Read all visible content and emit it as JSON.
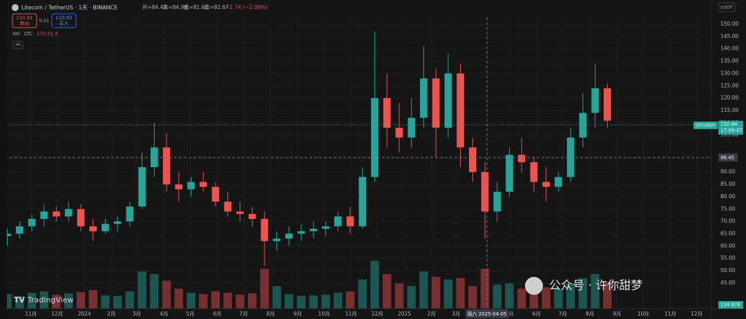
{
  "ui": {
    "symbol": "Litecoin / TetherUS · 1天 · BINANCE",
    "ohlc": [
      "开=84.41",
      "高=84.98",
      "低=81.62",
      "收=82.67",
      "−1.74 (−2.06%)"
    ],
    "sell_price": "110.81",
    "sell_label": "卖出",
    "spread": "0.01",
    "buy_price": "110.82",
    "buy_label": "买入",
    "volume_legend": "Vol · LTC",
    "volume_value": "172.01 K",
    "currency": "USDT",
    "last_symbol": "LTCUSDT",
    "last_price": "110.84",
    "countdown": "17:59:37",
    "cross_price": "98.45",
    "cross_date": "周六 2025-04-05",
    "cross_volume": "124.97K",
    "logo": "TradingView",
    "watermark": "公众号 · 许你甜梦"
  },
  "chart_data": {
    "type": "candlestick",
    "open": [
      64,
      65,
      68,
      71,
      74,
      72,
      75,
      68,
      66,
      69,
      70,
      76,
      92,
      100,
      85,
      83,
      86,
      84,
      78,
      74,
      73,
      71,
      62,
      63,
      65,
      66,
      67,
      68,
      72,
      68,
      88,
      120,
      108,
      104,
      112,
      128,
      108,
      130,
      100,
      90,
      74,
      82,
      97,
      94,
      86,
      84,
      88,
      104,
      114,
      124
    ],
    "high": [
      67,
      70,
      73,
      77,
      76,
      78,
      77,
      71,
      71,
      72,
      78,
      98,
      110,
      106,
      90,
      88,
      90,
      86,
      82,
      78,
      76,
      74,
      66,
      68,
      69,
      70,
      70,
      74,
      76,
      92,
      147,
      130,
      118,
      120,
      141,
      132,
      138,
      134,
      104,
      94,
      86,
      100,
      104,
      96,
      92,
      90,
      108,
      122,
      134,
      126
    ],
    "low": [
      60,
      63,
      66,
      68,
      70,
      70,
      66,
      62,
      65,
      66,
      68,
      75,
      88,
      82,
      78,
      80,
      82,
      76,
      72,
      70,
      68,
      52,
      58,
      60,
      62,
      63,
      64,
      66,
      65,
      67,
      86,
      100,
      98,
      100,
      108,
      96,
      104,
      92,
      86,
      63,
      70,
      80,
      90,
      82,
      78,
      82,
      86,
      100,
      108,
      108
    ],
    "close": [
      65,
      68,
      71,
      74,
      72,
      75,
      68,
      66,
      69,
      70,
      76,
      92,
      100,
      85,
      83,
      86,
      84,
      78,
      74,
      73,
      71,
      62,
      63,
      65,
      66,
      67,
      68,
      72,
      68,
      88,
      120,
      108,
      104,
      112,
      128,
      108,
      130,
      100,
      90,
      74,
      82,
      97,
      94,
      86,
      84,
      88,
      104,
      114,
      124,
      110.84
    ],
    "volume": [
      110,
      95,
      120,
      130,
      105,
      115,
      125,
      140,
      100,
      95,
      130,
      280,
      260,
      210,
      150,
      120,
      110,
      130,
      120,
      105,
      115,
      300,
      170,
      110,
      95,
      100,
      105,
      120,
      130,
      220,
      360,
      260,
      190,
      170,
      280,
      240,
      220,
      230,
      170,
      300,
      180,
      190,
      150,
      140,
      160,
      150,
      190,
      230,
      260,
      200
    ],
    "up_color": "#26a69a",
    "down_color": "#ef5350",
    "xlim": [
      -0.6,
      57.5
    ],
    "xticks": [
      {
        "value": 1.93,
        "label": "11月"
      },
      {
        "value": 4.07,
        "label": "12月"
      },
      {
        "value": 6.29,
        "label": "2024"
      },
      {
        "value": 8.5,
        "label": "2月"
      },
      {
        "value": 10.57,
        "label": "3月"
      },
      {
        "value": 12.79,
        "label": "4月"
      },
      {
        "value": 14.93,
        "label": "5月"
      },
      {
        "value": 17.14,
        "label": "6月"
      },
      {
        "value": 19.29,
        "label": "7月"
      },
      {
        "value": 21.5,
        "label": "8月"
      },
      {
        "value": 23.71,
        "label": "9月"
      },
      {
        "value": 25.86,
        "label": "10月"
      },
      {
        "value": 28.07,
        "label": "11月"
      },
      {
        "value": 30.21,
        "label": "12月"
      },
      {
        "value": 32.43,
        "label": "2025"
      },
      {
        "value": 34.64,
        "label": "2月"
      },
      {
        "value": 36.64,
        "label": "3月"
      },
      {
        "value": 41,
        "label": "5月"
      },
      {
        "value": 43.21,
        "label": "6月"
      },
      {
        "value": 45.36,
        "label": "7月"
      },
      {
        "value": 47.57,
        "label": "8月"
      },
      {
        "value": 49.79,
        "label": "9月"
      },
      {
        "value": 51.93,
        "label": "10月"
      },
      {
        "value": 54.14,
        "label": "11月"
      },
      {
        "value": 56.29,
        "label": "12月"
      }
    ],
    "ylim": [
      34.6,
      152.8
    ],
    "yticks": [
      {
        "value": 45,
        "label": "45.00"
      },
      {
        "value": 50,
        "label": "50.00"
      },
      {
        "value": 55,
        "label": "55.00"
      },
      {
        "value": 60,
        "label": "60.00"
      },
      {
        "value": 65,
        "label": "65.00"
      },
      {
        "value": 70,
        "label": "70.00"
      },
      {
        "value": 75,
        "label": "75.00"
      },
      {
        "value": 80,
        "label": "80.00"
      },
      {
        "value": 85,
        "label": "85.00"
      },
      {
        "value": 90,
        "label": "90.00"
      },
      {
        "value": 95,
        "label": "95.00"
      },
      {
        "value": 105,
        "label": "105.00"
      },
      {
        "value": 110,
        "label": "110.00"
      },
      {
        "value": 115,
        "label": "115.00"
      },
      {
        "value": 120,
        "label": "120.00"
      },
      {
        "value": 125,
        "label": "125.00"
      },
      {
        "value": 130,
        "label": "130.00"
      },
      {
        "value": 135,
        "label": "135.00"
      },
      {
        "value": 140,
        "label": "140.00"
      },
      {
        "value": 145,
        "label": "145.00"
      },
      {
        "value": 150,
        "label": "150.00"
      }
    ],
    "volume_ylim": [
      0,
      400
    ],
    "grid": true
  }
}
